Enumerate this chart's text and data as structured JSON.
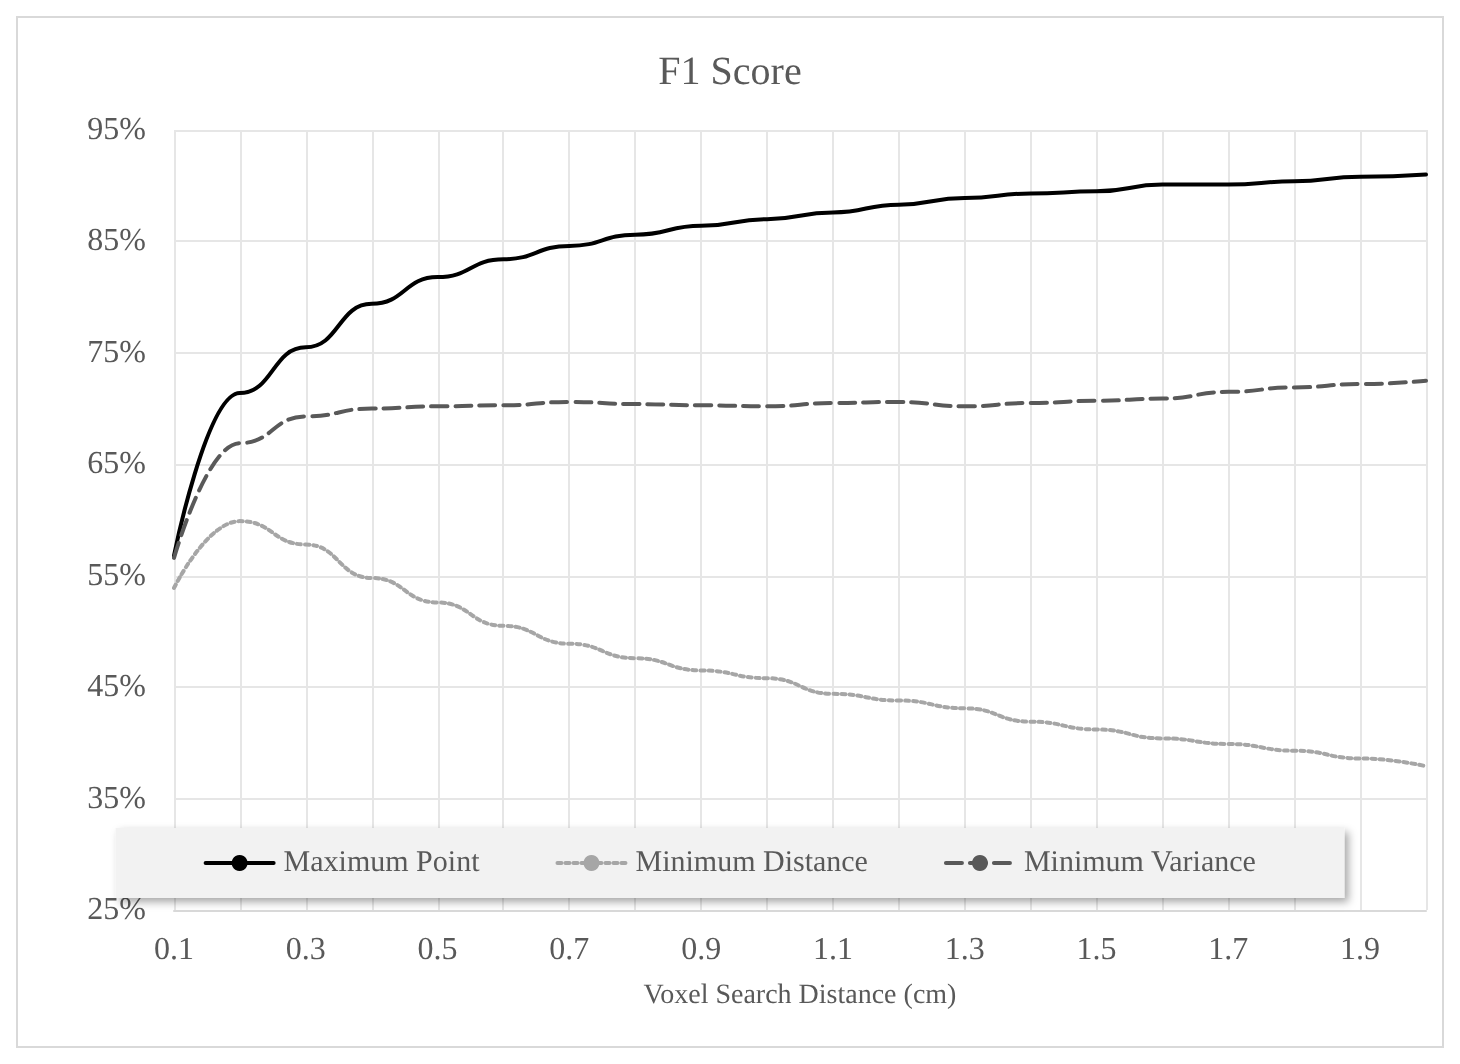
{
  "chart_data": {
    "type": "line",
    "title": "F1 Score",
    "xlabel": "Voxel Search Distance (cm)",
    "x": [
      0.1,
      0.2,
      0.3,
      0.4,
      0.5,
      0.6,
      0.7,
      0.8,
      0.9,
      1.0,
      1.1,
      1.2,
      1.3,
      1.4,
      1.5,
      1.6,
      1.7,
      1.8,
      1.9,
      2.0
    ],
    "series": [
      {
        "name": "Maximum Point",
        "color": "#000000",
        "line_style": "solid",
        "values": [
          56.8,
          71.4,
          75.5,
          79.4,
          81.8,
          83.4,
          84.6,
          85.6,
          86.4,
          87.0,
          87.6,
          88.3,
          88.9,
          89.3,
          89.5,
          90.1,
          90.1,
          90.4,
          90.8,
          91.0
        ]
      },
      {
        "name": "Minimum Distance",
        "color": "#a6a6a6",
        "line_style": "dotted",
        "values": [
          53.9,
          59.9,
          57.8,
          54.8,
          52.6,
          50.5,
          48.9,
          47.6,
          46.5,
          45.8,
          44.4,
          43.8,
          43.1,
          41.9,
          41.2,
          40.4,
          39.9,
          39.3,
          38.6,
          37.9
        ]
      },
      {
        "name": "Minimum Variance",
        "color": "#595959",
        "line_style": "dashed",
        "values": [
          56.6,
          66.9,
          69.3,
          70.0,
          70.2,
          70.3,
          70.6,
          70.4,
          70.3,
          70.2,
          70.5,
          70.6,
          70.2,
          70.5,
          70.7,
          70.9,
          71.5,
          71.9,
          72.2,
          72.5
        ]
      }
    ],
    "xlim": [
      0.1,
      2.0
    ],
    "xticks": [
      0.1,
      {
        "value": 0.2,
        "label": null
      },
      0.3,
      {
        "value": 0.4,
        "label": null
      },
      0.5,
      {
        "value": 0.6,
        "label": null
      },
      0.7,
      {
        "value": 0.8,
        "label": null
      },
      0.9,
      {
        "value": 1.0,
        "label": null
      },
      1.1,
      {
        "value": 1.2,
        "label": null
      },
      1.3,
      {
        "value": 1.4,
        "label": null
      },
      1.5,
      {
        "value": 1.6,
        "label": null
      },
      1.7,
      {
        "value": 1.8,
        "label": null
      },
      1.9,
      {
        "value": 2.0,
        "label": null
      }
    ],
    "ylim": [
      25,
      95
    ],
    "yticks": [
      {
        "value": 25,
        "label": "25%"
      },
      {
        "value": 35,
        "label": "35%"
      },
      {
        "value": 45,
        "label": "45%"
      },
      {
        "value": 55,
        "label": "55%"
      },
      {
        "value": 65,
        "label": "65%"
      },
      {
        "value": 75,
        "label": "75%"
      },
      {
        "value": 85,
        "label": "85%"
      },
      {
        "value": 95,
        "label": "95%"
      }
    ],
    "grid": true,
    "legend": "bottom",
    "marker": "none"
  }
}
